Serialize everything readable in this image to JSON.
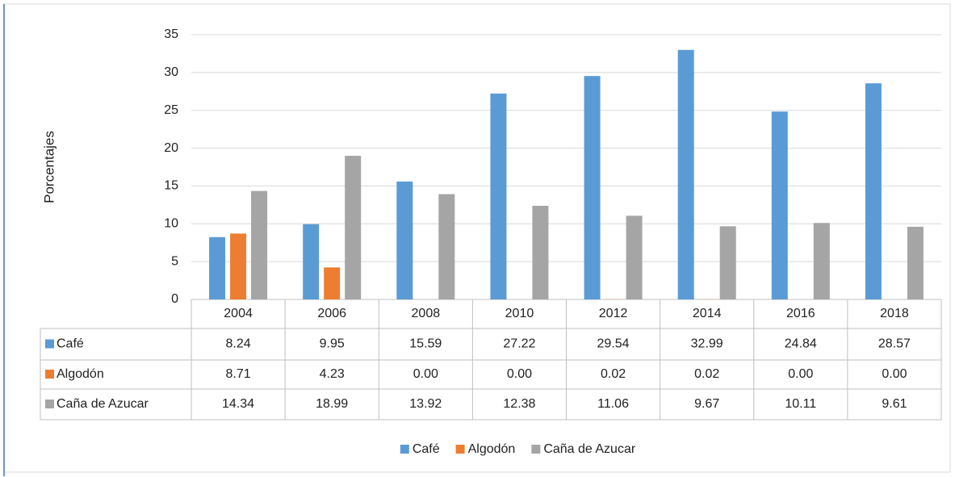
{
  "chart_data": {
    "type": "bar",
    "y_label": "Porcentajes",
    "categories": [
      "2004",
      "2006",
      "2008",
      "2010",
      "2012",
      "2014",
      "2016",
      "2018"
    ],
    "series": [
      {
        "name": "Café",
        "color": "#5b9bd5",
        "values": [
          8.24,
          9.95,
          15.59,
          27.22,
          29.54,
          32.99,
          24.84,
          28.57
        ]
      },
      {
        "name": "Algodón",
        "color": "#ed7d31",
        "values": [
          8.71,
          4.23,
          0,
          0,
          0.02,
          0.02,
          0,
          0
        ],
        "value_labels": [
          "8.71",
          "4.23",
          "0.00",
          "0.00",
          "0.02",
          "0.02",
          "0.00",
          "0.00"
        ]
      },
      {
        "name": "Caña de Azucar",
        "color": "#a5a5a5",
        "values": [
          14.34,
          18.99,
          13.92,
          12.38,
          11.06,
          9.67,
          10.11,
          9.61
        ]
      }
    ],
    "ylim": [
      0,
      35
    ],
    "yticks": [
      0,
      5,
      10,
      15,
      20,
      25,
      30,
      35
    ],
    "grid": true,
    "legend": "bottom"
  }
}
